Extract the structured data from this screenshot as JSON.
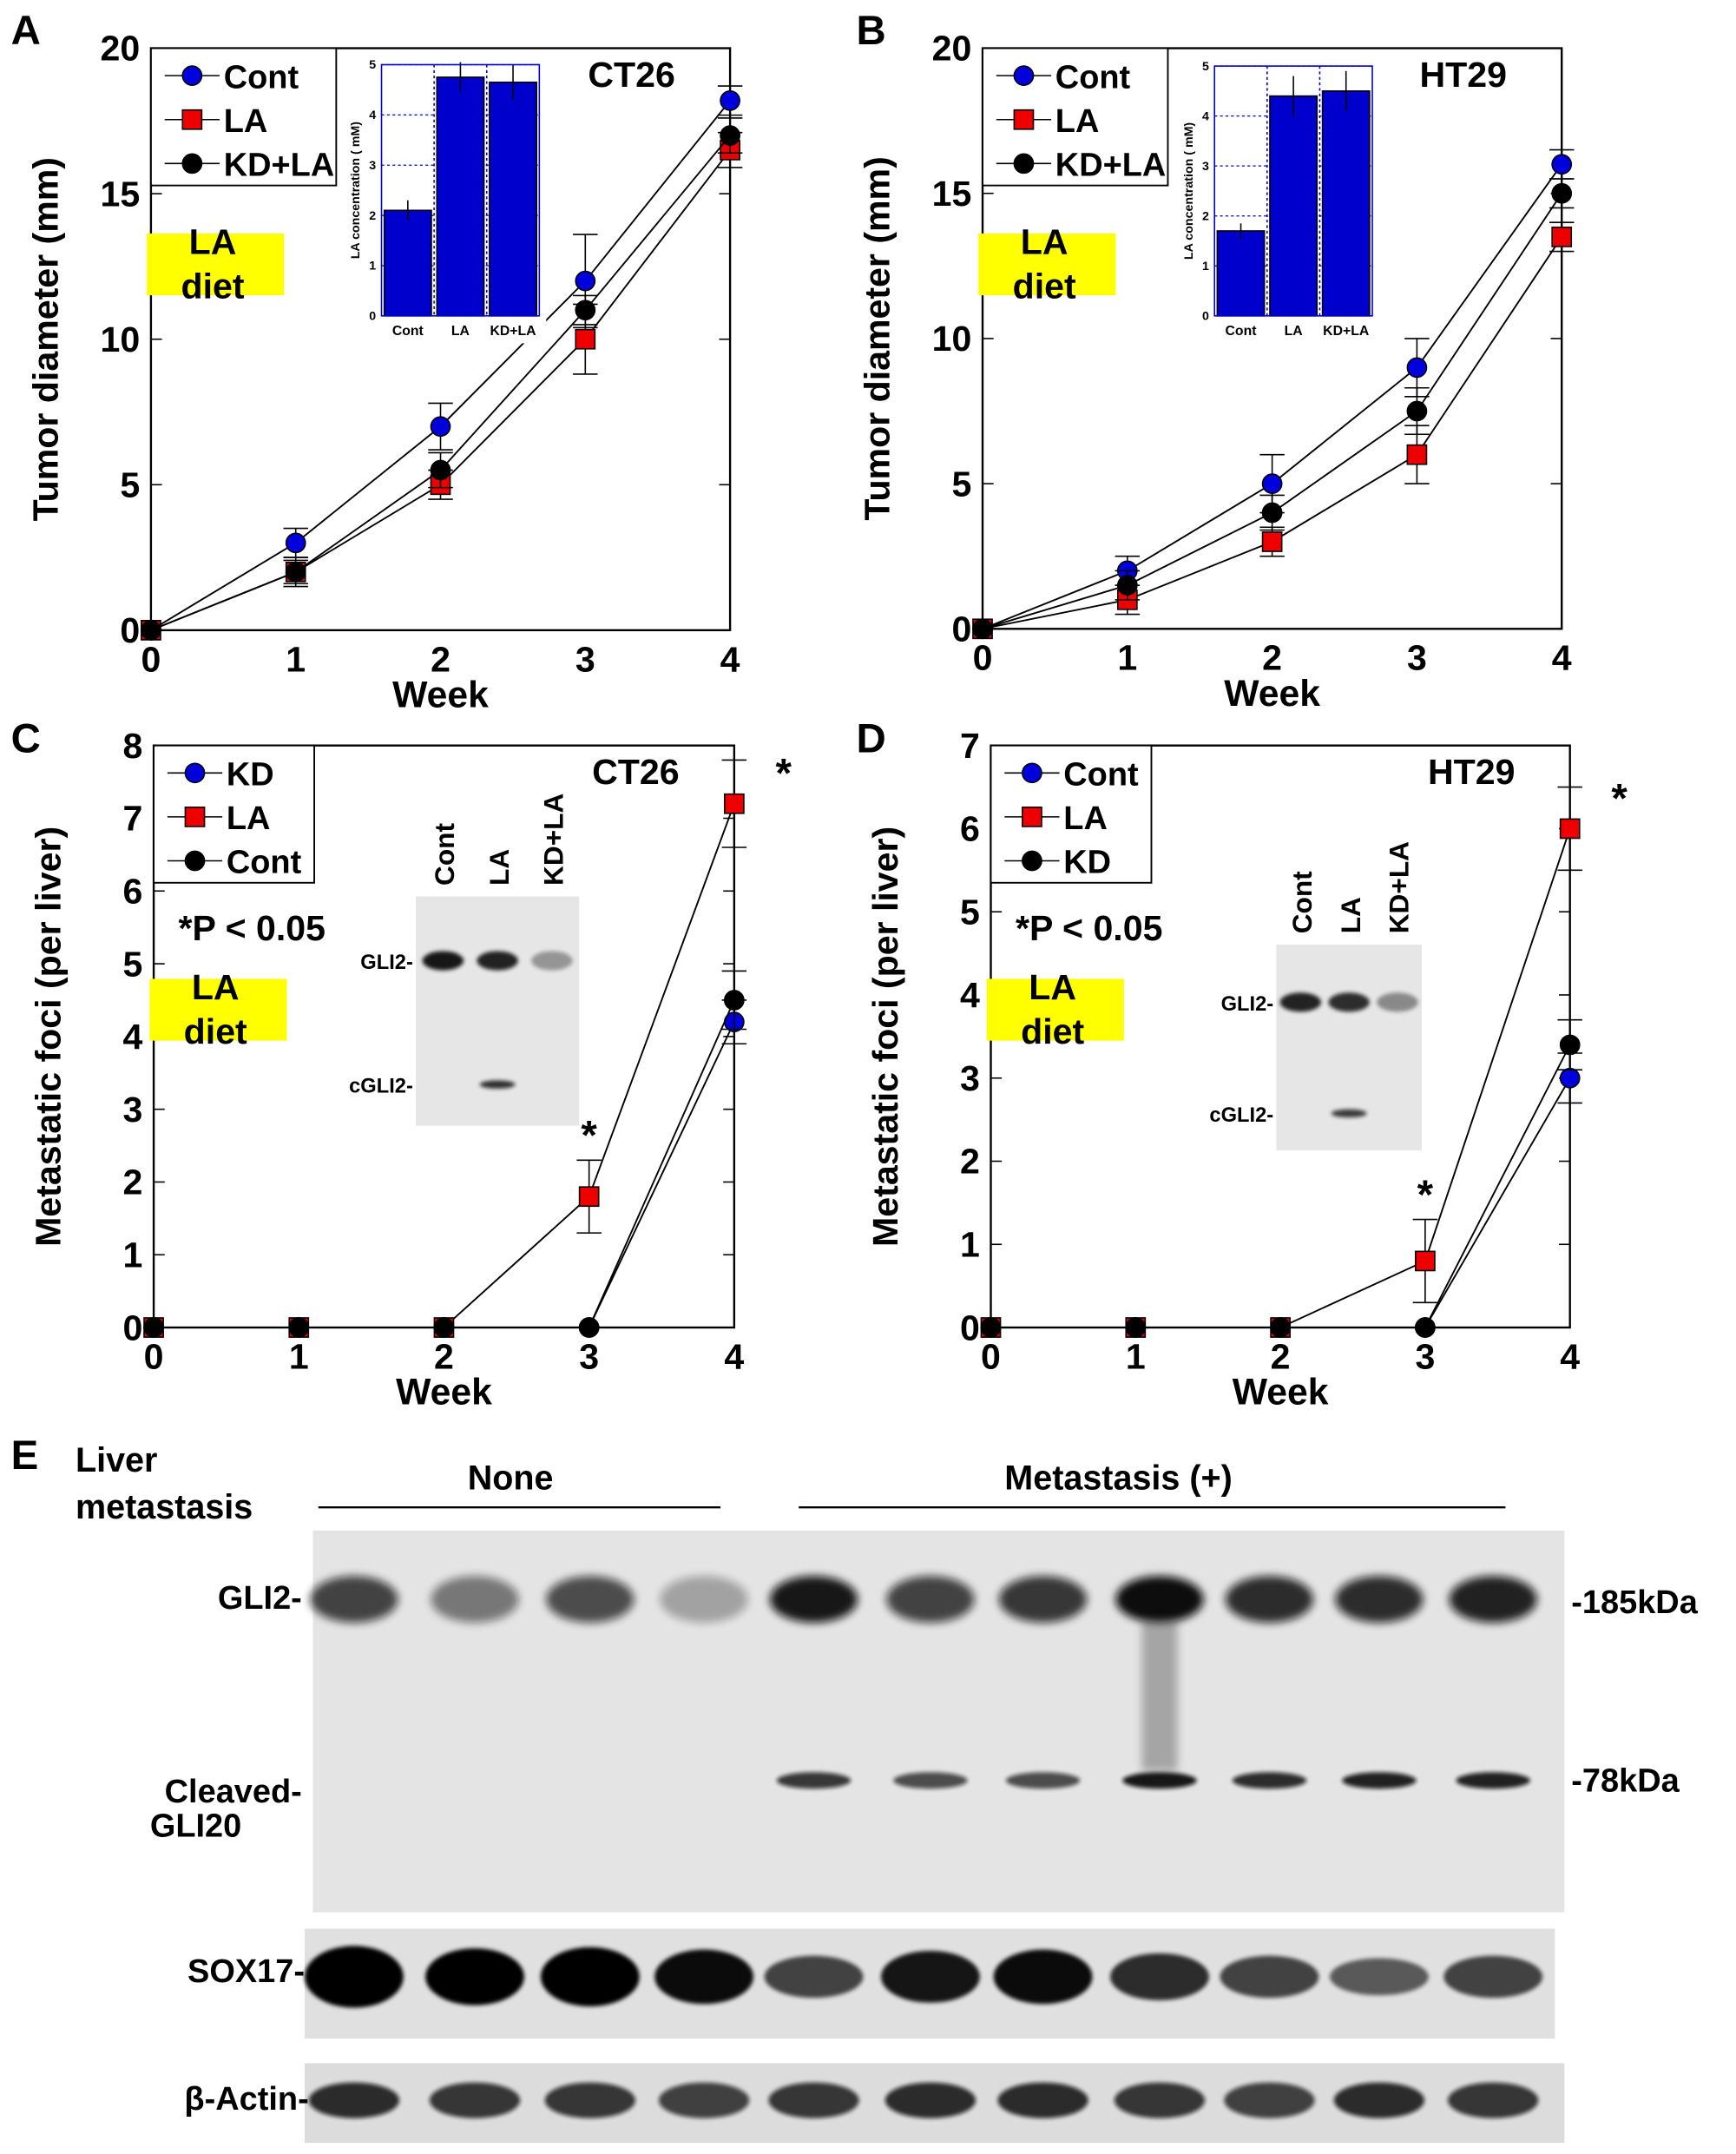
{
  "colors": {
    "cont_blue": "#0000dd",
    "la_red": "#ee0000",
    "black": "#000000",
    "highlight": "#ffff00",
    "inset_bar": "#0000cc"
  },
  "chart_data": [
    {
      "panel": "A",
      "type": "line",
      "title": "CT26",
      "xlabel": "Week",
      "ylabel": "Tumor diameter (mm)",
      "xlim": [
        0,
        4
      ],
      "ylim": [
        0,
        20
      ],
      "xticks": [
        "0",
        "1",
        "2",
        "3",
        "4"
      ],
      "yticks": [
        "0",
        "5",
        "10",
        "15",
        "20"
      ],
      "x": [
        0,
        1,
        2,
        3,
        4
      ],
      "legend_position": "top-left",
      "annotation": [
        "LA",
        "diet"
      ],
      "series": [
        {
          "name": "Cont",
          "marker": "circle",
          "color": "#0000dd",
          "values": [
            0,
            3,
            7,
            12,
            18.2
          ],
          "err": [
            0,
            0.5,
            0.8,
            1.6,
            0.5
          ]
        },
        {
          "name": "LA",
          "marker": "square",
          "color": "#ee0000",
          "values": [
            0,
            2,
            5,
            10,
            16.5
          ],
          "err": [
            0,
            0.5,
            0.5,
            1.2,
            0.6
          ]
        },
        {
          "name": "KD+LA",
          "marker": "circle",
          "color": "#000000",
          "values": [
            0,
            2,
            5.5,
            11,
            17
          ],
          "err": [
            0,
            0.4,
            0.6,
            0.5,
            0.6
          ]
        }
      ],
      "inset": {
        "type": "bar",
        "ylabel": "LA concentration ( mM)",
        "categories": [
          "Cont",
          "LA",
          "KD+LA"
        ],
        "values": [
          2.1,
          4.75,
          4.65
        ],
        "err": [
          0.2,
          0.3,
          0.35
        ],
        "ylim": [
          0,
          5
        ],
        "yticks": [
          "0",
          "1",
          "2",
          "3",
          "4",
          "5"
        ],
        "grid": true
      }
    },
    {
      "panel": "B",
      "type": "line",
      "title": "HT29",
      "xlabel": "Week",
      "ylabel": "Tumor diameter (mm)",
      "xlim": [
        0,
        4
      ],
      "ylim": [
        0,
        20
      ],
      "xticks": [
        "0",
        "1",
        "2",
        "3",
        "4"
      ],
      "yticks": [
        "0",
        "5",
        "10",
        "15",
        "20"
      ],
      "x": [
        0,
        1,
        2,
        3,
        4
      ],
      "legend_position": "top-left",
      "annotation": [
        "LA",
        "diet"
      ],
      "series": [
        {
          "name": "Cont",
          "marker": "circle",
          "color": "#0000dd",
          "values": [
            0,
            2,
            5,
            9,
            16
          ],
          "err": [
            0,
            0.5,
            1,
            1,
            0.5
          ]
        },
        {
          "name": "LA",
          "marker": "square",
          "color": "#ee0000",
          "values": [
            0,
            1,
            3,
            6,
            13.5
          ],
          "err": [
            0,
            0.5,
            0.5,
            1,
            0.5
          ]
        },
        {
          "name": "KD+LA",
          "marker": "circle",
          "color": "#000000",
          "values": [
            0,
            1.5,
            4,
            7.5,
            15
          ],
          "err": [
            0,
            0.5,
            0.6,
            0.8,
            0.5
          ]
        }
      ],
      "inset": {
        "type": "bar",
        "ylabel": "LA concentration ( mM)",
        "categories": [
          "Cont",
          "LA",
          "KD+LA"
        ],
        "values": [
          1.7,
          4.4,
          4.5
        ],
        "err": [
          0.15,
          0.4,
          0.4
        ],
        "ylim": [
          0,
          5
        ],
        "yticks": [
          "0",
          "1",
          "2",
          "3",
          "4",
          "5"
        ],
        "grid": true
      }
    },
    {
      "panel": "C",
      "type": "line",
      "title": "CT26",
      "xlabel": "Week",
      "ylabel": "Metastatic foci (per liver)",
      "xlim": [
        0,
        4
      ],
      "ylim": [
        0,
        8
      ],
      "xticks": [
        "0",
        "1",
        "2",
        "3",
        "4"
      ],
      "yticks": [
        "0",
        "1",
        "2",
        "3",
        "4",
        "5",
        "6",
        "7",
        "8"
      ],
      "x": [
        0,
        1,
        2,
        3,
        4
      ],
      "legend_position": "top-left",
      "annotation": [
        "LA",
        "diet"
      ],
      "pvalue": "*P < 0.05",
      "significance": [
        {
          "x": 3,
          "label": "*"
        },
        {
          "x": 4,
          "label": "*"
        }
      ],
      "series": [
        {
          "name": "KD",
          "marker": "circle",
          "color": "#0000dd",
          "values": [
            0,
            0,
            0,
            0,
            4.2
          ],
          "err": [
            0,
            0,
            0,
            0,
            0.3
          ]
        },
        {
          "name": "LA",
          "marker": "square",
          "color": "#ee0000",
          "values": [
            0,
            0,
            0,
            1.8,
            7.2
          ],
          "err": [
            0,
            0,
            0,
            0.5,
            0.6
          ]
        },
        {
          "name": "Cont",
          "marker": "circle",
          "color": "#000000",
          "values": [
            0,
            0,
            0,
            0,
            4.5
          ],
          "err": [
            0,
            0,
            0,
            0,
            0.4
          ]
        }
      ],
      "blot": {
        "lanes": [
          "Cont",
          "LA",
          "KD+LA"
        ],
        "bands": [
          "GLI2-",
          "cGLI2-"
        ],
        "gli2": [
          0.9,
          0.85,
          0.35
        ],
        "cgli2": [
          0,
          0.8,
          0
        ]
      }
    },
    {
      "panel": "D",
      "type": "line",
      "title": "HT29",
      "xlabel": "Week",
      "ylabel": "Metastatic foci (per liver)",
      "xlim": [
        0,
        4
      ],
      "ylim": [
        0,
        7
      ],
      "xticks": [
        "0",
        "1",
        "2",
        "3",
        "4"
      ],
      "yticks": [
        "0",
        "1",
        "2",
        "3",
        "4",
        "5",
        "6",
        "7"
      ],
      "x": [
        0,
        1,
        2,
        3,
        4
      ],
      "legend_position": "top-left",
      "annotation": [
        "LA",
        "diet"
      ],
      "pvalue": "*P < 0.05",
      "significance": [
        {
          "x": 3,
          "label": "*"
        },
        {
          "x": 4,
          "label": "*"
        }
      ],
      "series": [
        {
          "name": "Cont",
          "marker": "circle",
          "color": "#0000dd",
          "values": [
            0,
            0,
            0,
            0,
            3
          ],
          "err": [
            0,
            0,
            0,
            0,
            0.3
          ]
        },
        {
          "name": "LA",
          "marker": "square",
          "color": "#ee0000",
          "values": [
            0,
            0,
            0,
            0.8,
            6
          ],
          "err": [
            0,
            0,
            0,
            0.5,
            0.5
          ]
        },
        {
          "name": "KD",
          "marker": "circle",
          "color": "#000000",
          "values": [
            0,
            0,
            0,
            0,
            3.4
          ],
          "err": [
            0,
            0,
            0,
            0,
            0.3
          ]
        }
      ],
      "blot": {
        "lanes": [
          "Cont",
          "LA",
          "KD+LA"
        ],
        "bands": [
          "GLI2-",
          "cGLI2-"
        ],
        "gli2": [
          0.85,
          0.8,
          0.4
        ],
        "cgli2": [
          0,
          0.75,
          0
        ]
      }
    }
  ],
  "panel_e": {
    "label": "E",
    "row_header": [
      "Liver",
      "metastasis"
    ],
    "groups": [
      "None",
      "Metastasis (+)"
    ],
    "bands": [
      "GLI2-",
      "Cleaved-",
      "GLI20",
      "SOX17-",
      "β-Actin-"
    ],
    "markers": [
      "-185kDa",
      "-78kDa"
    ],
    "gli2": [
      0.75,
      0.5,
      0.7,
      0.3,
      0.95,
      0.75,
      0.8,
      1.0,
      0.85,
      0.85,
      0.9
    ],
    "cleaved_gli2": [
      0,
      0,
      0,
      0,
      0.8,
      0.7,
      0.7,
      0.95,
      0.85,
      0.9,
      0.9
    ],
    "sox17": [
      1.0,
      0.9,
      0.95,
      0.85,
      0.6,
      0.8,
      0.85,
      0.7,
      0.6,
      0.5,
      0.6
    ],
    "actin": [
      0.85,
      0.8,
      0.8,
      0.75,
      0.8,
      0.85,
      0.85,
      0.8,
      0.75,
      0.85,
      0.8
    ]
  },
  "panel_labels": [
    "A",
    "B",
    "C",
    "D"
  ]
}
